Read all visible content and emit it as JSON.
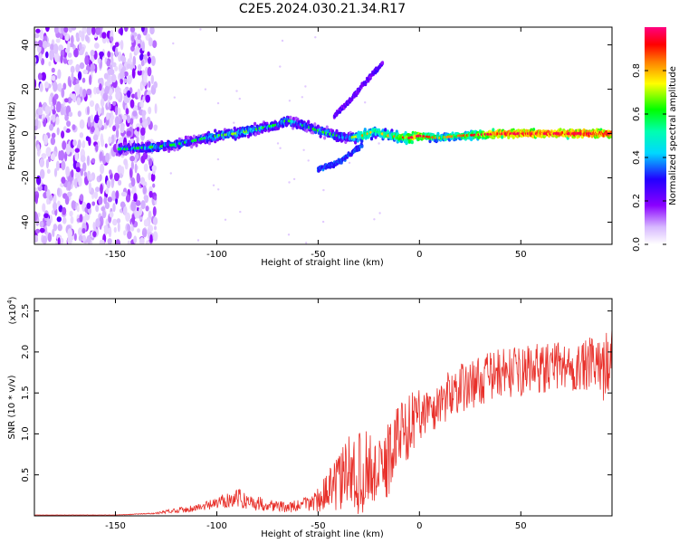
{
  "title": "C2E5.2024.030.21.34.R17",
  "chart_data": [
    {
      "type": "heatmap",
      "name": "spectrogram",
      "xlabel": "Height of straight line (km)",
      "ylabel": "Frequency (Hz)",
      "xlim": [
        -190,
        95
      ],
      "ylim": [
        -50,
        48
      ],
      "xticks": [
        -150,
        -100,
        -50,
        0,
        50
      ],
      "yticks": [
        -40,
        -20,
        0,
        20,
        40
      ],
      "colorbar": {
        "label": "Normalized spectral amplitude",
        "range": [
          0,
          1
        ],
        "ticks": [
          0.0,
          0.2,
          0.4,
          0.6,
          0.8
        ]
      },
      "ridge": {
        "x": [
          -145,
          -130,
          -120,
          -110,
          -100,
          -90,
          -80,
          -70,
          -65,
          -55,
          -45,
          -35,
          -28,
          -22,
          -15,
          -5,
          0,
          10,
          20,
          40,
          60,
          80,
          95
        ],
        "y": [
          -7,
          -6,
          -5,
          -3,
          -1,
          0,
          2,
          4,
          6,
          3,
          0,
          -2,
          -1,
          1,
          -1,
          -2,
          -1,
          -2,
          -1,
          0,
          0,
          0,
          0
        ],
        "amplitude": [
          0.35,
          0.4,
          0.35,
          0.35,
          0.4,
          0.45,
          0.4,
          0.35,
          0.4,
          0.35,
          0.4,
          0.35,
          0.6,
          0.5,
          0.55,
          0.7,
          0.75,
          0.55,
          0.6,
          0.85,
          0.9,
          0.88,
          0.9
        ]
      },
      "branch_upper": {
        "x": [
          -42,
          -35,
          -28,
          -22,
          -18
        ],
        "y": [
          8,
          14,
          22,
          28,
          32
        ]
      },
      "branch_lower": {
        "x": [
          -50,
          -42,
          -35,
          -28
        ],
        "y": [
          -16,
          -14,
          -10,
          -5
        ]
      },
      "noise_region": {
        "x": [
          -190,
          -130
        ],
        "y": [
          -50,
          48
        ]
      }
    },
    {
      "type": "line",
      "name": "snr",
      "xlabel": "Height of straight line (km)",
      "ylabel": "SNR (10 * v/v)",
      "y_multiplier": "(x10",
      "y_multiplier_exp": "4",
      "y_multiplier_close": ")",
      "xlim": [
        -190,
        95
      ],
      "ylim": [
        0,
        2.65
      ],
      "xticks": [
        -150,
        -100,
        -50,
        0,
        50
      ],
      "yticks": [
        "0.5",
        "1.0",
        "1.5",
        "2.0",
        "2.5"
      ],
      "color": "#e8302a",
      "series": [
        {
          "name": "SNR",
          "x": [
            -190,
            -180,
            -170,
            -160,
            -150,
            -140,
            -130,
            -125,
            -120,
            -115,
            -110,
            -105,
            -100,
            -95,
            -90,
            -85,
            -80,
            -75,
            -70,
            -65,
            -60,
            -55,
            -50,
            -45,
            -40,
            -35,
            -30,
            -25,
            -20,
            -18,
            -15,
            -12,
            -10,
            -8,
            -5,
            -2,
            0,
            2,
            5,
            8,
            10,
            12,
            15,
            18,
            20,
            25,
            30,
            35,
            40,
            45,
            50,
            55,
            60,
            65,
            70,
            75,
            80,
            85,
            88,
            90,
            92,
            95
          ],
          "y": [
            0.01,
            0.01,
            0.01,
            0.01,
            0.01,
            0.02,
            0.03,
            0.05,
            0.07,
            0.08,
            0.1,
            0.12,
            0.15,
            0.2,
            0.22,
            0.18,
            0.15,
            0.14,
            0.12,
            0.1,
            0.12,
            0.15,
            0.2,
            0.3,
            0.4,
            0.55,
            0.5,
            0.6,
            0.5,
            0.6,
            0.7,
            0.9,
            1.0,
            1.05,
            1.1,
            1.2,
            1.25,
            1.3,
            1.25,
            1.3,
            1.4,
            1.4,
            1.5,
            1.55,
            1.55,
            1.6,
            1.65,
            1.7,
            1.75,
            1.75,
            1.75,
            1.8,
            1.8,
            1.8,
            1.85,
            1.8,
            1.8,
            1.85,
            1.8,
            1.75,
            1.9,
            1.85
          ],
          "noise_amplitude": [
            0.002,
            0.002,
            0.002,
            0.002,
            0.002,
            0.005,
            0.01,
            0.02,
            0.03,
            0.04,
            0.05,
            0.06,
            0.07,
            0.1,
            0.12,
            0.1,
            0.09,
            0.08,
            0.07,
            0.06,
            0.08,
            0.1,
            0.15,
            0.25,
            0.35,
            0.45,
            0.5,
            0.5,
            0.4,
            0.45,
            0.5,
            0.45,
            0.45,
            0.4,
            0.4,
            0.35,
            0.35,
            0.3,
            0.3,
            0.3,
            0.3,
            0.3,
            0.3,
            0.3,
            0.3,
            0.3,
            0.3,
            0.3,
            0.3,
            0.3,
            0.3,
            0.3,
            0.3,
            0.3,
            0.3,
            0.3,
            0.3,
            0.35,
            0.35,
            0.4,
            0.4,
            0.45
          ]
        }
      ]
    }
  ]
}
